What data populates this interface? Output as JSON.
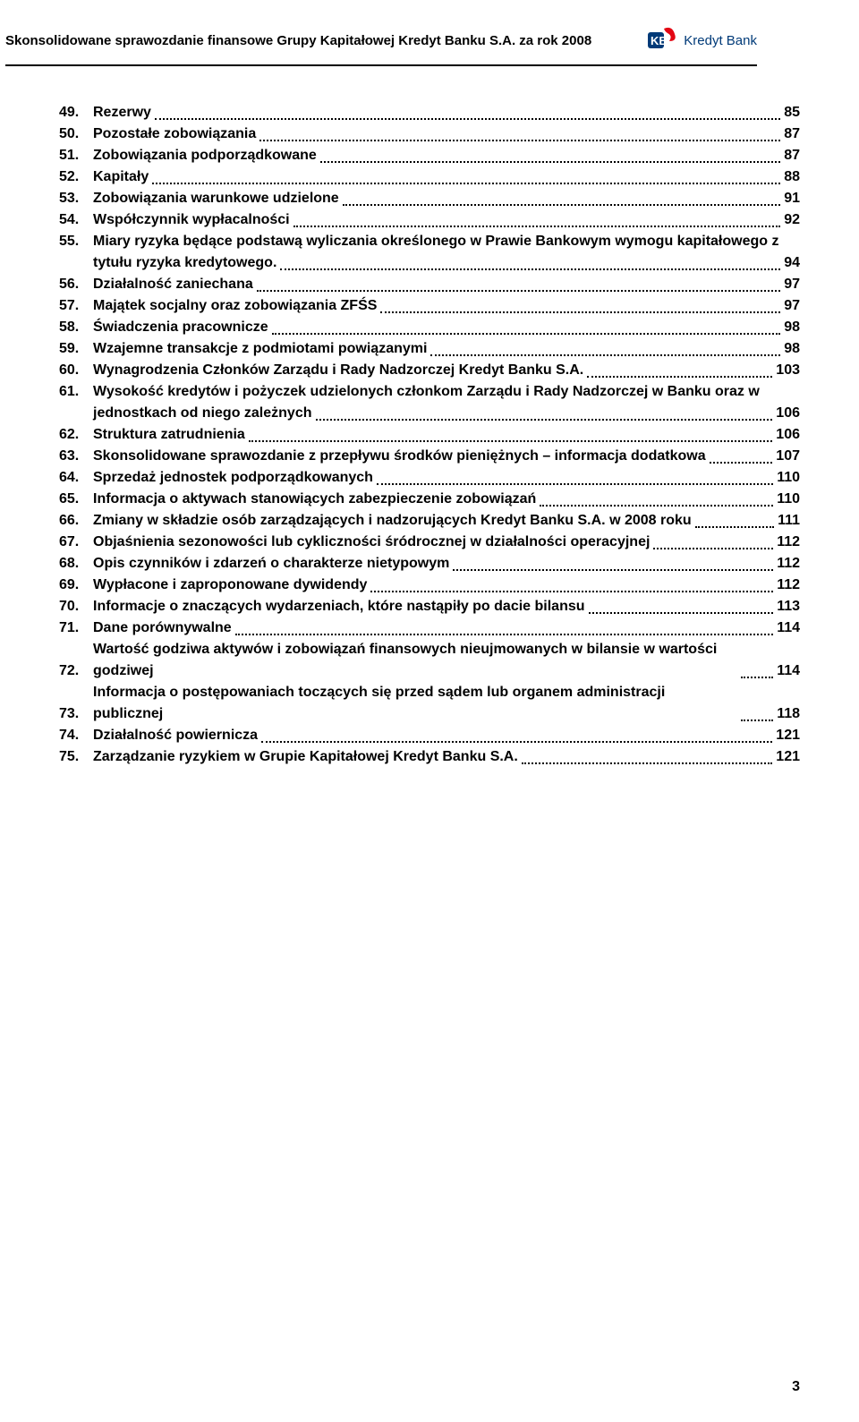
{
  "header": {
    "title": "Skonsolidowane sprawozdanie finansowe Grupy Kapitałowej Kredyt Banku S.A. za rok 2008",
    "logo_text": "Kredyt Bank",
    "logo_mark_color": "#003a78",
    "logo_accent_color": "#e30613"
  },
  "toc": [
    {
      "num": "49.",
      "text": "Rezerwy",
      "page": "85"
    },
    {
      "num": "50.",
      "text": "Pozostałe zobowiązania",
      "page": "87"
    },
    {
      "num": "51.",
      "text": "Zobowiązania podporządkowane",
      "page": "87"
    },
    {
      "num": "52.",
      "text": "Kapitały",
      "page": "88"
    },
    {
      "num": "53.",
      "text": "Zobowiązania warunkowe udzielone",
      "page": "91"
    },
    {
      "num": "54.",
      "text": "Współczynnik wypłacalności",
      "page": "92"
    },
    {
      "num": "55.",
      "text": "Miary ryzyka będące podstawą wyliczania określonego w Prawie Bankowym wymogu kapitałowego z",
      "text2": "tytułu ryzyka kredytowego.",
      "page": "94"
    },
    {
      "num": "56.",
      "text": "Działalność zaniechana",
      "page": "97"
    },
    {
      "num": "57.",
      "text": "Majątek socjalny oraz zobowiązania ZFŚS",
      "page": "97"
    },
    {
      "num": "58.",
      "text": "Świadczenia pracownicze",
      "page": "98"
    },
    {
      "num": "59.",
      "text": "Wzajemne transakcje z podmiotami powiązanymi",
      "page": "98"
    },
    {
      "num": "60.",
      "text": "Wynagrodzenia Członków Zarządu i Rady Nadzorczej Kredyt Banku S.A.",
      "page": "103"
    },
    {
      "num": "61.",
      "text": "Wysokość kredytów i pożyczek udzielonych członkom Zarządu i Rady Nadzorczej w Banku oraz w",
      "text2": "jednostkach od niego zależnych",
      "page": "106"
    },
    {
      "num": "62.",
      "text": "Struktura zatrudnienia",
      "page": "106"
    },
    {
      "num": "63.",
      "text": "Skonsolidowane sprawozdanie z przepływu środków pieniężnych – informacja dodatkowa",
      "page": "107"
    },
    {
      "num": "64.",
      "text": "Sprzedaż jednostek podporządkowanych",
      "page": "110"
    },
    {
      "num": "65.",
      "text": "Informacja o aktywach stanowiących zabezpieczenie zobowiązań",
      "page": "110"
    },
    {
      "num": "66.",
      "text": "Zmiany w składzie osób zarządzających i nadzorujących Kredyt Banku S.A. w 2008 roku",
      "page": "111"
    },
    {
      "num": "67.",
      "text": "Objaśnienia sezonowości lub cykliczności śródrocznej w działalności operacyjnej",
      "page": "112"
    },
    {
      "num": "68.",
      "text": "Opis czynników i zdarzeń o charakterze nietypowym",
      "page": "112"
    },
    {
      "num": "69.",
      "text": "Wypłacone i zaproponowane dywidendy",
      "page": "112"
    },
    {
      "num": "70.",
      "text": "Informacje o znaczących wydarzeniach, które nastąpiły po dacie bilansu",
      "page": "113"
    },
    {
      "num": "71.",
      "text": "Dane porównywalne",
      "page": "114"
    },
    {
      "num": "72.",
      "text": "Wartość godziwa aktywów i zobowiązań finansowych nieujmowanych w bilansie w wartości godziwej",
      "page": "114"
    },
    {
      "num": "73.",
      "text": "Informacja o postępowaniach toczących się przed sądem lub organem administracji publicznej",
      "page": "118"
    },
    {
      "num": "74.",
      "text": "Działalność powiernicza",
      "page": "121"
    },
    {
      "num": "75.",
      "text": "Zarządzanie ryzykiem w Grupie Kapitałowej Kredyt Banku S.A.",
      "page": "121"
    }
  ],
  "page_number": "3",
  "style": {
    "font_size_body": 16,
    "font_size_header": 15,
    "font_family": "Arial",
    "text_color": "#000000",
    "background": "#ffffff",
    "dot_leader_color": "#000000",
    "hr_color": "#000000"
  }
}
